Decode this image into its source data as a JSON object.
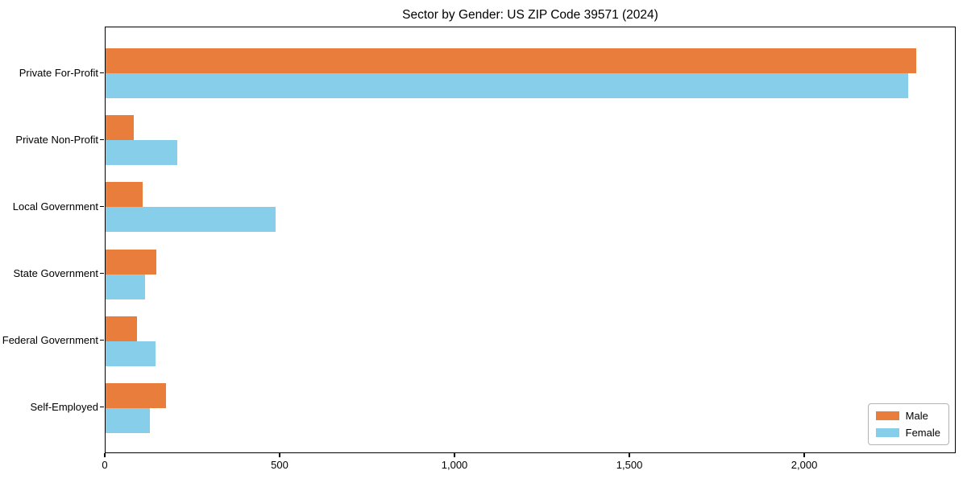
{
  "title": "Sector by Gender: US ZIP Code 39571 (2024)",
  "chart_data": {
    "type": "bar",
    "orientation": "horizontal",
    "title": "Sector by Gender: US ZIP Code 39571 (2024)",
    "categories": [
      "Private For-Profit",
      "Private Non-Profit",
      "Local Government",
      "State Government",
      "Federal Government",
      "Self-Employed"
    ],
    "series": [
      {
        "name": "Male",
        "color": "#e87d3c",
        "values": [
          2317,
          80,
          105,
          146,
          89,
          172
        ]
      },
      {
        "name": "Female",
        "color": "#87ceeb",
        "values": [
          2294,
          204,
          485,
          112,
          142,
          126
        ]
      }
    ],
    "xlabel": "",
    "ylabel": "",
    "xlim": [
      0,
      2433
    ],
    "x_ticks": [
      {
        "value": 0,
        "label": "0"
      },
      {
        "value": 500,
        "label": "500"
      },
      {
        "value": 1000,
        "label": "1,000"
      },
      {
        "value": 1500,
        "label": "1,500"
      },
      {
        "value": 2000,
        "label": "2,000"
      }
    ],
    "grid": false,
    "legend_position": "lower right"
  },
  "legend": {
    "items": [
      {
        "label": "Male",
        "color": "#e87d3c"
      },
      {
        "label": "Female",
        "color": "#87ceeb"
      }
    ]
  }
}
